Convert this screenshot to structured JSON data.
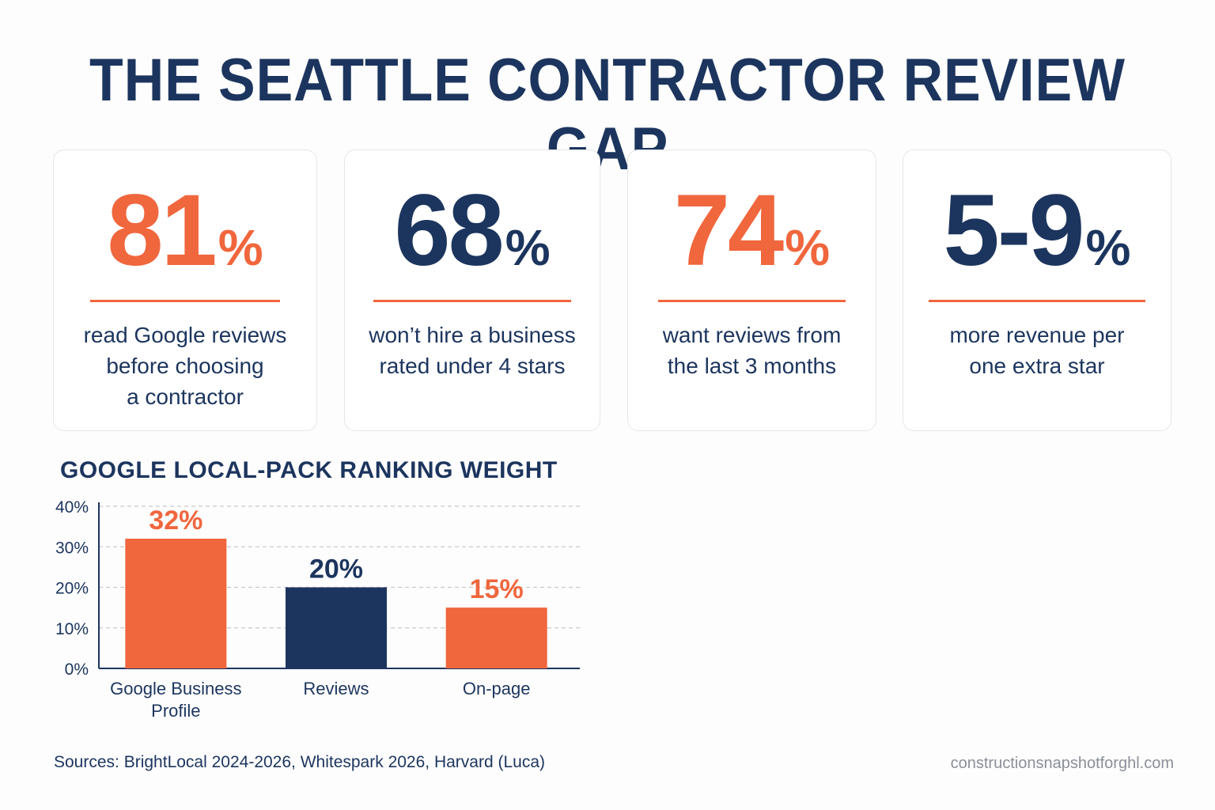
{
  "title": "THE SEATTLE CONTRACTOR REVIEW GAP",
  "stats": [
    {
      "value": "81",
      "unit": "%",
      "desc": "read Google reviews\nbefore choosing\na contractor",
      "color": "#f0663d"
    },
    {
      "value": "68",
      "unit": "%",
      "desc": "won’t hire a business\nrated under 4 stars",
      "color": "#1c355e"
    },
    {
      "value": "74",
      "unit": "%",
      "desc": "want reviews from\nthe last 3 months",
      "color": "#f0663d"
    },
    {
      "value": "5-9",
      "unit": "%",
      "desc": "more revenue per\none extra star",
      "color": "#1c355e"
    }
  ],
  "chart_data": {
    "type": "bar",
    "title": "GOOGLE LOCAL-PACK RANKING WEIGHT",
    "categories": [
      "Google Business\nProfile",
      "Reviews",
      "On-page"
    ],
    "values": [
      32,
      20,
      15
    ],
    "data_labels": [
      "32%",
      "20%",
      "15%"
    ],
    "bar_colors": [
      "#f0663d",
      "#1c355e",
      "#f0663d"
    ],
    "yticks": [
      "0%",
      "10%",
      "20%",
      "30%",
      "40%"
    ],
    "ylim": [
      0,
      40
    ],
    "grid": true,
    "xlabel": "",
    "ylabel": ""
  },
  "footer": {
    "sources": "Sources: BrightLocal 2024-2026, Whitespark 2026, Harvard (Luca)",
    "site": "constructionsnapshotforghl.com"
  },
  "colors": {
    "accent": "#f0663d",
    "navy": "#1c355e"
  }
}
